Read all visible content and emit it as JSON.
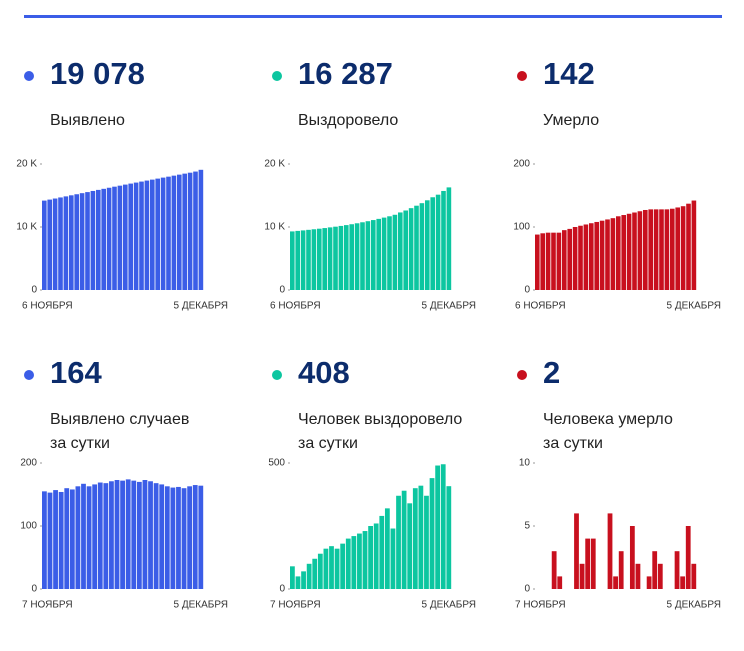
{
  "cards": [
    {
      "color": "#3b5de7",
      "value": "19 078",
      "label_lines": [
        "Выявлено"
      ],
      "chart": {
        "type": "bar",
        "ylim": [
          0,
          20000
        ],
        "yticks": [
          0,
          {
            "value": 10000,
            "label": "10 K"
          },
          {
            "value": 20000,
            "label": "20 K"
          }
        ],
        "x_start": "6 НОЯБРЯ",
        "x_end": "5 ДЕКАБРЯ",
        "values": [
          14190,
          14350,
          14520,
          14690,
          14860,
          15030,
          15200,
          15370,
          15540,
          15720,
          15890,
          16060,
          16230,
          16400,
          16560,
          16730,
          16890,
          17050,
          17210,
          17370,
          17520,
          17680,
          17840,
          17990,
          18150,
          18310,
          18470,
          18620,
          18800,
          19078
        ]
      }
    },
    {
      "color": "#0cc6a0",
      "value": "16 287",
      "label_lines": [
        "Выздоровело"
      ],
      "chart": {
        "type": "bar",
        "ylim": [
          0,
          20000
        ],
        "yticks": [
          0,
          {
            "value": 10000,
            "label": "10 K"
          },
          {
            "value": 20000,
            "label": "20 K"
          }
        ],
        "x_start": "6 НОЯБРЯ",
        "x_end": "5 ДЕКАБРЯ",
        "values": [
          9300,
          9380,
          9460,
          9550,
          9640,
          9730,
          9830,
          9940,
          10050,
          10170,
          10300,
          10440,
          10590,
          10750,
          10920,
          11100,
          11290,
          11490,
          11700,
          11940,
          12310,
          12620,
          12990,
          13380,
          13780,
          14240,
          14720,
          15130,
          15720,
          16287
        ]
      }
    },
    {
      "color": "#c8101e",
      "value": "142",
      "label_lines": [
        "Умерло"
      ],
      "chart": {
        "type": "bar",
        "ylim": [
          0,
          200
        ],
        "yticks": [
          0,
          100,
          200
        ],
        "x_start": "6 НОЯБРЯ",
        "x_end": "5 ДЕКАБРЯ",
        "values": [
          88,
          90,
          91,
          91,
          91,
          95,
          97,
          100,
          102,
          104,
          106,
          108,
          110,
          112,
          114,
          117,
          119,
          121,
          123,
          125,
          127,
          128,
          128,
          128,
          128,
          129,
          131,
          133,
          137,
          142
        ]
      }
    },
    {
      "color": "#3b5de7",
      "value": "164",
      "label_lines": [
        "Выявлено случаев",
        "за сутки"
      ],
      "chart": {
        "type": "bar",
        "ylim": [
          0,
          200
        ],
        "yticks": [
          0,
          100,
          200
        ],
        "x_start": "7 НОЯБРЯ",
        "x_end": "5 ДЕКАБРЯ",
        "values": [
          155,
          153,
          157,
          154,
          160,
          158,
          163,
          167,
          163,
          166,
          169,
          168,
          171,
          173,
          172,
          174,
          172,
          170,
          173,
          171,
          168,
          166,
          163,
          161,
          162,
          160,
          163,
          165,
          164
        ]
      }
    },
    {
      "color": "#0cc6a0",
      "value": "408",
      "label_lines": [
        "Человек выздоровело",
        "за сутки"
      ],
      "chart": {
        "type": "bar",
        "ylim": [
          0,
          500
        ],
        "yticks": [
          0,
          500
        ],
        "x_start": "7 НОЯБРЯ",
        "x_end": "5 ДЕКАБРЯ",
        "values": [
          90,
          50,
          70,
          100,
          120,
          140,
          160,
          170,
          160,
          180,
          200,
          210,
          220,
          230,
          250,
          260,
          290,
          320,
          240,
          370,
          390,
          340,
          400,
          410,
          370,
          440,
          490,
          495,
          408
        ]
      }
    },
    {
      "color": "#c8101e",
      "value": "2",
      "label_lines": [
        "Человека умерло",
        "за сутки"
      ],
      "chart": {
        "type": "bar",
        "ylim": [
          0,
          10
        ],
        "yticks": [
          0,
          5,
          10
        ],
        "x_start": "7 НОЯБРЯ",
        "x_end": "5 ДЕКАБРЯ",
        "values": [
          0,
          0,
          0,
          3,
          1,
          0,
          0,
          6,
          2,
          4,
          4,
          0,
          0,
          6,
          1,
          3,
          0,
          5,
          2,
          0,
          1,
          3,
          2,
          0,
          0,
          3,
          1,
          5,
          2
        ]
      }
    }
  ]
}
